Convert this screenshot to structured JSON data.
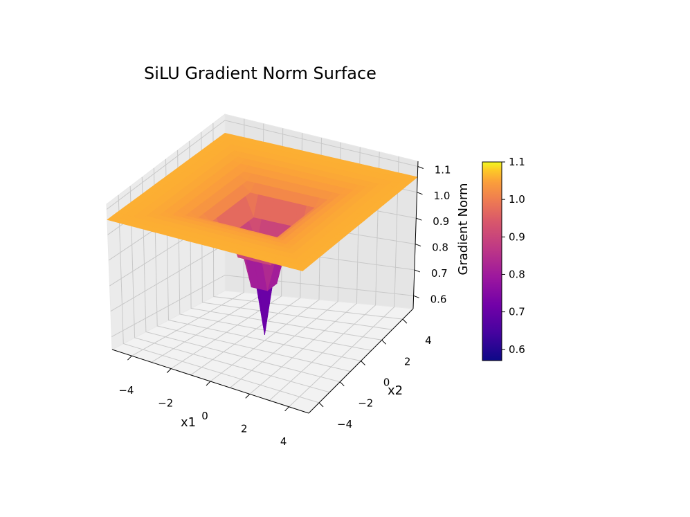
{
  "chart_data": {
    "type": "surface",
    "title": "SiLU Gradient Norm Surface",
    "xlabel": "x1",
    "ylabel": "x2",
    "zlabel": "Gradient Norm",
    "colormap": "plasma",
    "x_ticks": [
      "−4",
      "−2",
      "0",
      "2",
      "4"
    ],
    "y_ticks": [
      "−4",
      "−2",
      "0",
      "2",
      "4"
    ],
    "z_ticks": [
      "0.6",
      "0.7",
      "0.8",
      "0.9",
      "1.0",
      "1.1"
    ],
    "colorbar_ticks": [
      "0.6",
      "0.7",
      "0.8",
      "0.9",
      "1.0",
      "1.1"
    ],
    "xlim": [
      -5,
      5
    ],
    "ylim": [
      -5,
      5
    ],
    "zlim": [
      0.55,
      1.12
    ],
    "colorbar_range": [
      0.57,
      1.1
    ],
    "plateau_value": 1.06,
    "min_value": 0.57,
    "grid": true
  }
}
